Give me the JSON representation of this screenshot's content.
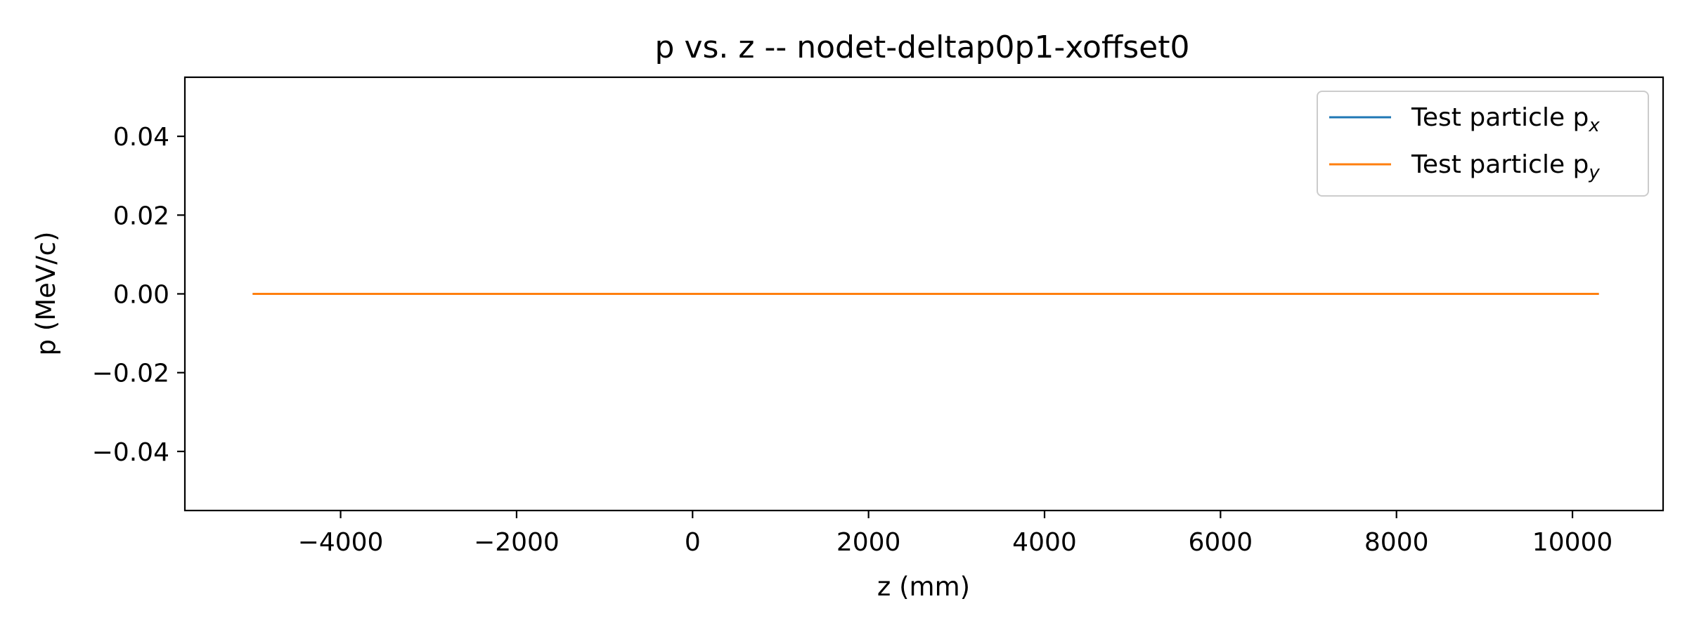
{
  "chart_data": {
    "type": "line",
    "title": "p vs. z -- nodet-deltap0p1-xoffset0",
    "xlabel": "z (mm)",
    "ylabel": "p (MeV/c)",
    "xlim": [
      -5770,
      11030
    ],
    "ylim": [
      -0.055,
      0.055
    ],
    "xticks": [
      -4000,
      -2000,
      0,
      2000,
      4000,
      6000,
      8000,
      10000
    ],
    "xtick_labels": [
      "−4000",
      "−2000",
      "0",
      "2000",
      "4000",
      "6000",
      "8000",
      "10000"
    ],
    "yticks": [
      0.04,
      0.02,
      0.0,
      -0.02,
      -0.04
    ],
    "ytick_labels": [
      "0.04",
      "0.02",
      "0.00",
      "−0.02",
      "−0.04"
    ],
    "grid": false,
    "legend_position": "upper right",
    "series": [
      {
        "name": "Test particle p",
        "subscript": "x",
        "color": "#1f77b4",
        "x": [
          -5000,
          10300
        ],
        "y": [
          0.0,
          0.0
        ]
      },
      {
        "name": "Test particle p",
        "subscript": "y",
        "color": "#ff7f0e",
        "x": [
          -5000,
          10300
        ],
        "y": [
          0.0,
          0.0
        ]
      }
    ]
  }
}
